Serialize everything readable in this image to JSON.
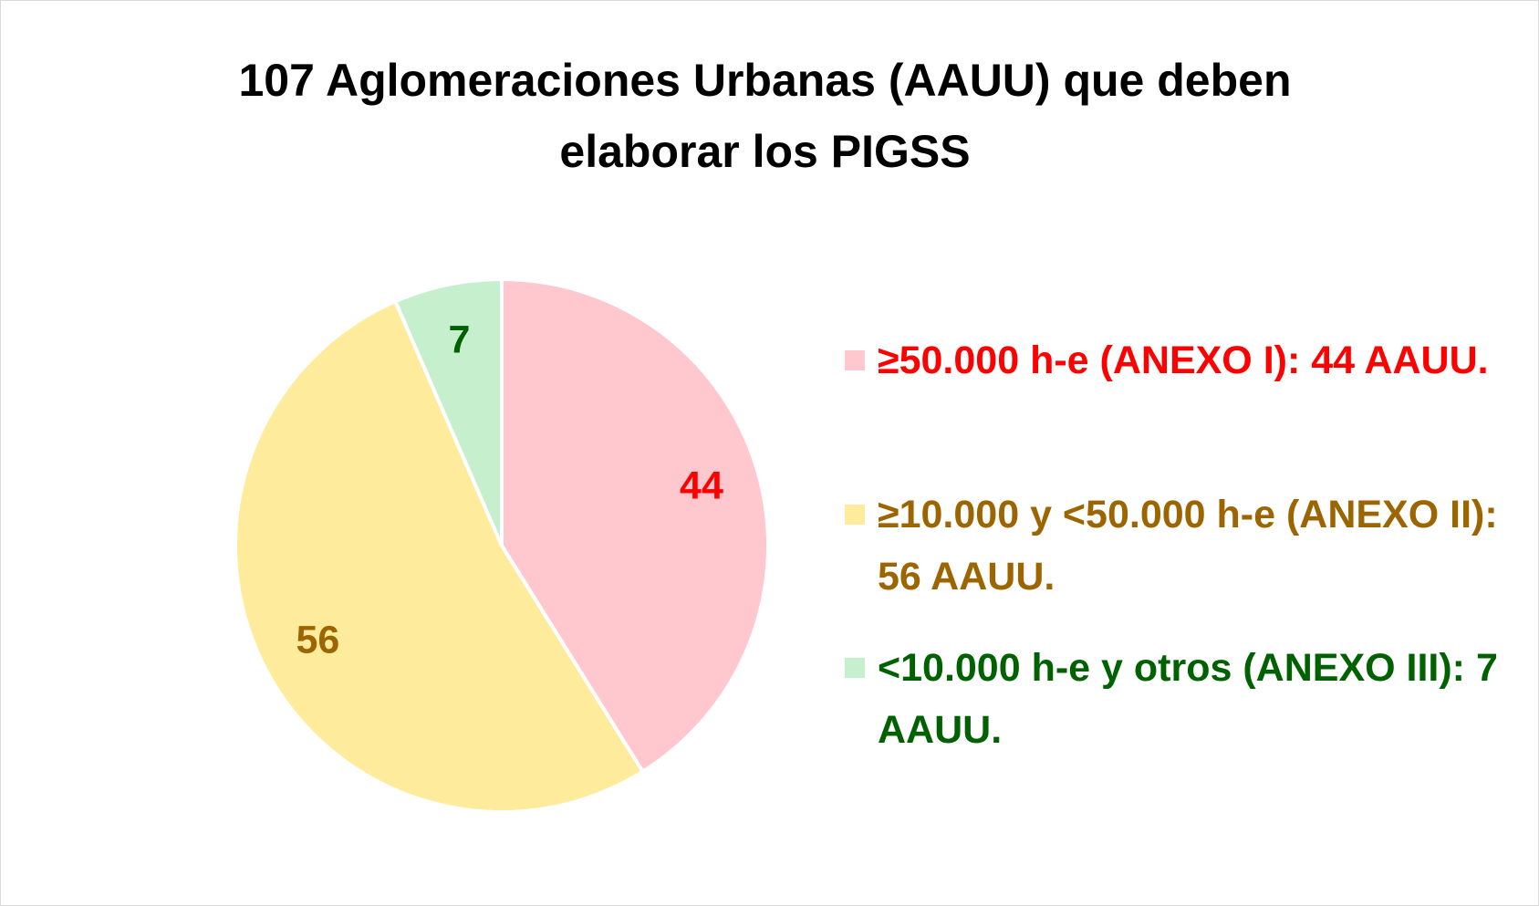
{
  "chart_data": {
    "type": "pie",
    "title": "107 Aglomeraciones Urbanas (AAUU) que deben elaborar los PIGSS",
    "categories": [
      "≥50.000 h-e (ANEXO I): 44 AAUU.",
      "≥10.000 y <50.000 h-e (ANEXO II): 56 AAUU.",
      "<10.000 h-e y otros (ANEXO III): 7 AAUU."
    ],
    "values": [
      44,
      56,
      7
    ],
    "colors": [
      "#ffc7ce",
      "#ffeb9c",
      "#c6efce"
    ],
    "label_colors": [
      "#ff0000",
      "#9c6500",
      "#006100"
    ],
    "legend": "right"
  }
}
